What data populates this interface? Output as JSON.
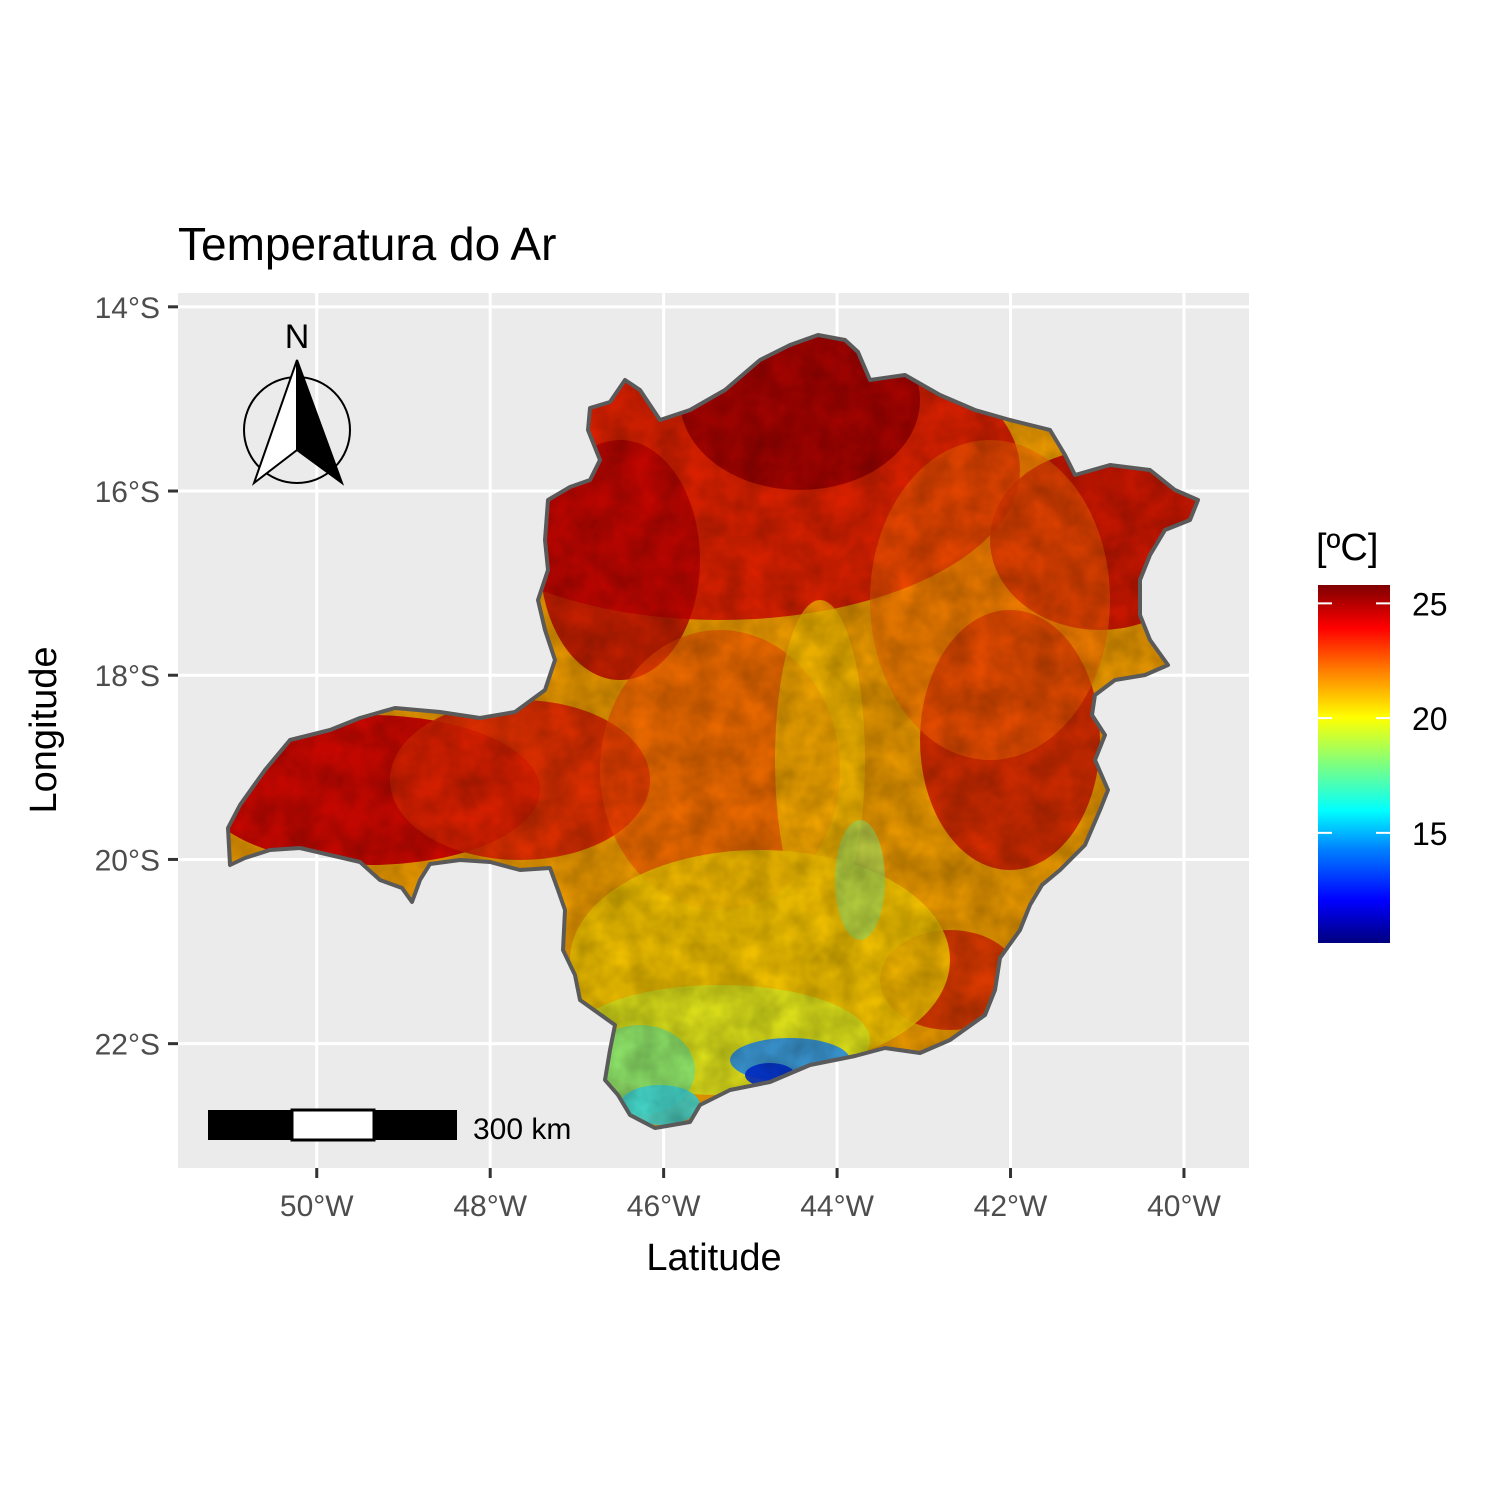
{
  "title": "Temperatura do Ar",
  "chart_data": {
    "type": "heatmap",
    "title": "Temperatura do Ar",
    "xlabel": "Latitude",
    "ylabel": "Longitude",
    "x_ticks": [
      -50,
      -48,
      -46,
      -44,
      -42,
      -40
    ],
    "x_tick_labels": [
      "50°W",
      "48°W",
      "46°W",
      "44°W",
      "42°W",
      "40°W"
    ],
    "y_ticks": [
      -14,
      -16,
      -18,
      -20,
      -22
    ],
    "y_tick_labels": [
      "14°S",
      "16°S",
      "18°S",
      "20°S",
      "22°S"
    ],
    "xlim": [
      -51.6,
      -39.25
    ],
    "ylim": [
      -23.35,
      -13.85
    ],
    "grid": true,
    "legend": {
      "title": "[ºC]",
      "position": "right",
      "ticks": [
        25,
        20,
        15
      ],
      "tick_labels": [
        "25",
        "20",
        "15"
      ],
      "range": [
        10.2,
        25.8
      ],
      "palette": [
        "#00007F",
        "#0000FF",
        "#007FFF",
        "#00FFFF",
        "#7FFF7F",
        "#FFFF00",
        "#FF7F00",
        "#FF0000",
        "#7F0000"
      ]
    },
    "scale_bar": {
      "label": "300 km"
    },
    "north_arrow": {
      "label": "N"
    }
  },
  "colors": {
    "panel_background": "#EBEBEB",
    "grid": "#FFFFFF",
    "border": "#5a5a5a"
  }
}
